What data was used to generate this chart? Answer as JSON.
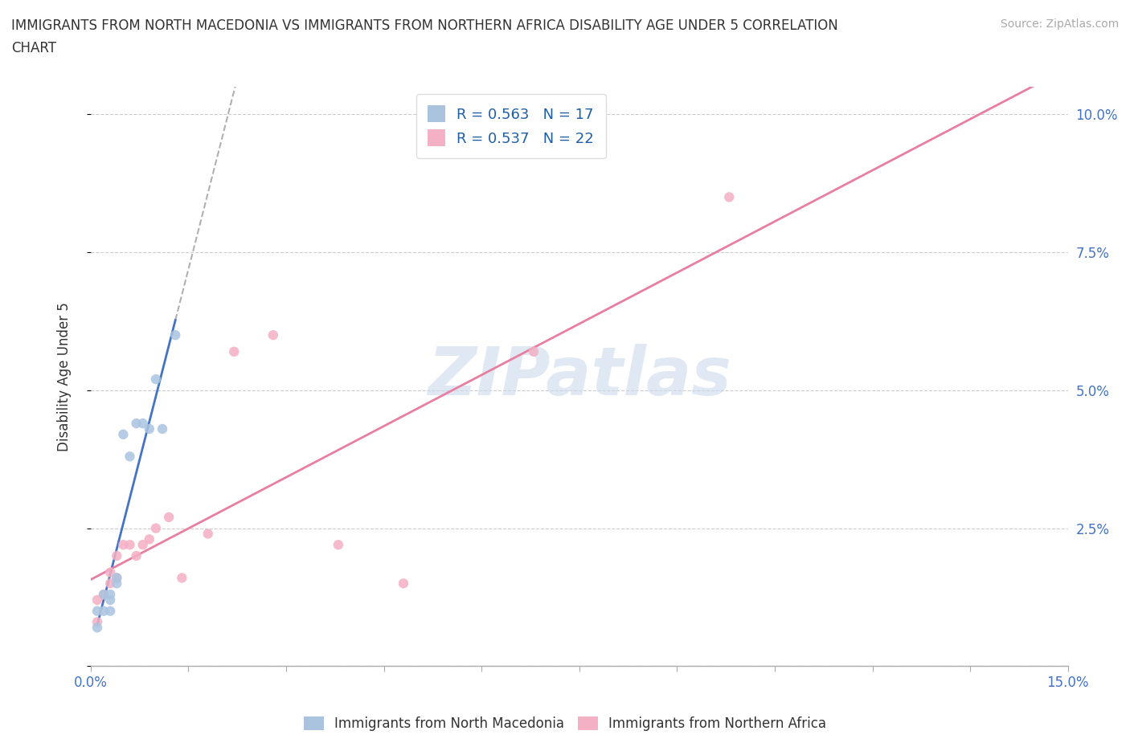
{
  "title_line1": "IMMIGRANTS FROM NORTH MACEDONIA VS IMMIGRANTS FROM NORTHERN AFRICA DISABILITY AGE UNDER 5 CORRELATION",
  "title_line2": "CHART",
  "source": "Source: ZipAtlas.com",
  "ylabel": "Disability Age Under 5",
  "xlim": [
    0.0,
    0.15
  ],
  "ylim": [
    0.0,
    0.105
  ],
  "xticks": [
    0.0,
    0.015,
    0.03,
    0.045,
    0.06,
    0.075,
    0.09,
    0.105,
    0.12,
    0.135,
    0.15
  ],
  "yticks": [
    0.0,
    0.025,
    0.05,
    0.075,
    0.1
  ],
  "ytick_labels_right": [
    "",
    "2.5%",
    "5.0%",
    "7.5%",
    "10.0%"
  ],
  "watermark_zip": "ZIP",
  "watermark_atlas": "atlas",
  "blue_color": "#aac4e0",
  "pink_color": "#f4b0c4",
  "blue_line_color": "#4472c4",
  "pink_line_color": "#e87fa0",
  "R_blue": 0.563,
  "N_blue": 17,
  "R_pink": 0.537,
  "N_pink": 22,
  "blue_scatter_x": [
    0.001,
    0.001,
    0.002,
    0.002,
    0.003,
    0.003,
    0.003,
    0.004,
    0.004,
    0.005,
    0.006,
    0.007,
    0.008,
    0.009,
    0.01,
    0.011,
    0.013
  ],
  "blue_scatter_y": [
    0.007,
    0.01,
    0.01,
    0.013,
    0.01,
    0.012,
    0.013,
    0.015,
    0.016,
    0.042,
    0.038,
    0.044,
    0.044,
    0.043,
    0.052,
    0.043,
    0.06
  ],
  "pink_scatter_x": [
    0.001,
    0.001,
    0.002,
    0.003,
    0.003,
    0.004,
    0.004,
    0.005,
    0.006,
    0.007,
    0.008,
    0.009,
    0.01,
    0.012,
    0.014,
    0.018,
    0.022,
    0.028,
    0.038,
    0.048,
    0.068,
    0.098
  ],
  "pink_scatter_y": [
    0.008,
    0.012,
    0.013,
    0.015,
    0.017,
    0.016,
    0.02,
    0.022,
    0.022,
    0.02,
    0.022,
    0.023,
    0.025,
    0.027,
    0.016,
    0.024,
    0.057,
    0.06,
    0.022,
    0.015,
    0.057,
    0.085
  ],
  "background_color": "#ffffff",
  "grid_color": "#cccccc"
}
